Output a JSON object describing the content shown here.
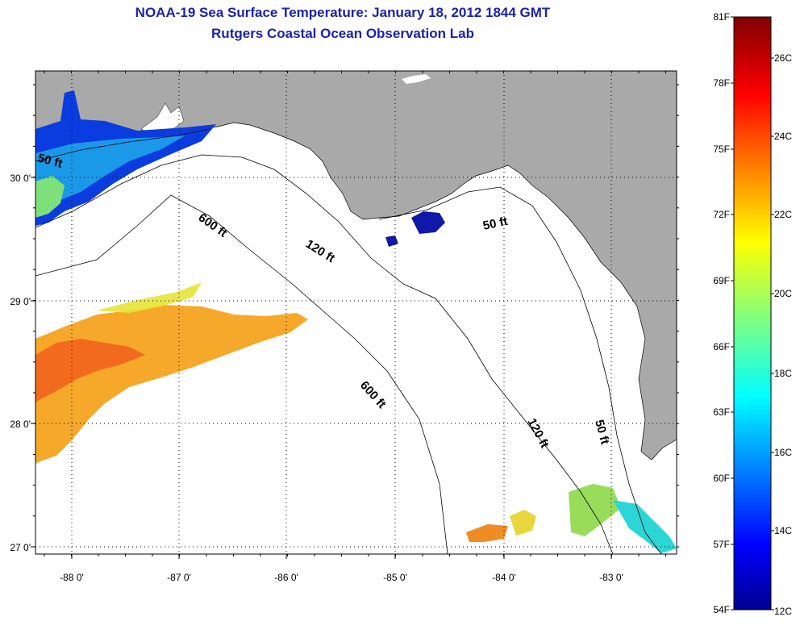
{
  "title": "NOAA-19 Sea Surface Temperature:  January 18, 2012 1844 GMT",
  "subtitle": "Rutgers Coastal Ocean Observation Lab",
  "map": {
    "lon_labels": [
      "-88 0'",
      "-87 0'",
      "-86 0'",
      "-85 0'",
      "-84 0'",
      "-83 0'"
    ],
    "lat_labels": [
      "30 0'",
      "29 0'",
      "28 0'",
      "27 0'"
    ],
    "contour_labels": [
      "50 ft",
      "600 ft",
      "120 ft",
      "50 ft",
      "600 ft",
      "120 ft",
      "50 ft"
    ],
    "land_color": "#a9a9a9",
    "ocean_color": "#ffffff"
  },
  "colorbar": {
    "f_labels": [
      "81F",
      "78F",
      "75F",
      "72F",
      "69F",
      "66F",
      "63F",
      "60F",
      "57F",
      "54F"
    ],
    "c_labels": [
      "26C",
      "24C",
      "22C",
      "20C",
      "18C",
      "16C",
      "14C",
      "12C"
    ],
    "colormap": "jet"
  }
}
